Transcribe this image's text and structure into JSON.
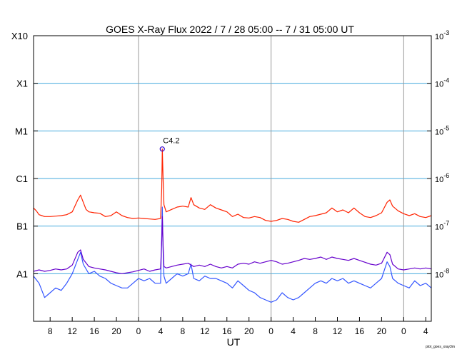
{
  "chart_data": {
    "type": "line",
    "title": "GOES X-Ray Flux   2022  /  7  /  28   05:00 --  7  /  31   05:00   UT",
    "xlabel": "UT",
    "ylabel_left_classes": [
      "X10",
      "X1",
      "M1",
      "C1",
      "B1",
      "A1"
    ],
    "ylabel_right_ticks": [
      {
        "base": "10",
        "exp": "-3"
      },
      {
        "base": "10",
        "exp": "-4"
      },
      {
        "base": "10",
        "exp": "-5"
      },
      {
        "base": "10",
        "exp": "-6"
      },
      {
        "base": "10",
        "exp": "-7"
      },
      {
        "base": "10",
        "exp": "-8"
      }
    ],
    "yscale": "log",
    "ylim_log10": [
      -9,
      -3
    ],
    "x_range_hours": [
      0,
      72
    ],
    "x_start": "2022-07-28 05:00 UT",
    "x_end": "2022-07-31 05:00 UT",
    "x_tick_labels": [
      "8",
      "12",
      "16",
      "20",
      "0",
      "4",
      "8",
      "12",
      "16",
      "20",
      "0",
      "4",
      "8",
      "12",
      "16",
      "20",
      "0",
      "4"
    ],
    "x_tick_hours": [
      3,
      7,
      11,
      15,
      19,
      23,
      27,
      31,
      35,
      39,
      43,
      47,
      51,
      55,
      59,
      63,
      67,
      71
    ],
    "day_boundaries_hours": [
      19,
      43,
      67
    ],
    "class_gridlines_log10": [
      -4,
      -5,
      -6,
      -7,
      -8
    ],
    "annotation": {
      "label": "C4.2",
      "x_hours": 23.3,
      "y_log10": -5.38
    },
    "footer": "plot_goes_xray3m",
    "colors": {
      "long_channel": "#ff2200",
      "long_channel_secondary": "#ff9900",
      "short_channel": "#3355ff",
      "short_channel_secondary": "#6600cc",
      "class_grid": "#44aadd",
      "day_grid": "#999999"
    },
    "series": [
      {
        "name": "",
        "color": "#ff2200",
        "points": [
          [
            0,
            -6.62
          ],
          [
            0.5,
            -6.68
          ],
          [
            1,
            -6.76
          ],
          [
            1.5,
            -6.78
          ],
          [
            2,
            -6.8
          ],
          [
            3,
            -6.8
          ],
          [
            4,
            -6.79
          ],
          [
            5,
            -6.78
          ],
          [
            6,
            -6.76
          ],
          [
            7,
            -6.7
          ],
          [
            8,
            -6.45
          ],
          [
            8.5,
            -6.35
          ],
          [
            9,
            -6.5
          ],
          [
            9.5,
            -6.65
          ],
          [
            10,
            -6.7
          ],
          [
            11,
            -6.72
          ],
          [
            12,
            -6.73
          ],
          [
            13,
            -6.8
          ],
          [
            14,
            -6.78
          ],
          [
            15,
            -6.7
          ],
          [
            16,
            -6.78
          ],
          [
            17,
            -6.82
          ],
          [
            18,
            -6.84
          ],
          [
            19,
            -6.83
          ],
          [
            20,
            -6.84
          ],
          [
            21,
            -6.85
          ],
          [
            22,
            -6.86
          ],
          [
            23,
            -6.84
          ],
          [
            23.2,
            -6.2
          ],
          [
            23.3,
            -5.38
          ],
          [
            23.45,
            -6.0
          ],
          [
            23.6,
            -6.55
          ],
          [
            24,
            -6.7
          ],
          [
            25,
            -6.65
          ],
          [
            26,
            -6.6
          ],
          [
            27,
            -6.58
          ],
          [
            28,
            -6.6
          ],
          [
            28.5,
            -6.4
          ],
          [
            29,
            -6.55
          ],
          [
            30,
            -6.62
          ],
          [
            31,
            -6.65
          ],
          [
            32,
            -6.55
          ],
          [
            33,
            -6.62
          ],
          [
            34,
            -6.66
          ],
          [
            35,
            -6.7
          ],
          [
            36,
            -6.8
          ],
          [
            37,
            -6.75
          ],
          [
            38,
            -6.82
          ],
          [
            39,
            -6.83
          ],
          [
            40,
            -6.8
          ],
          [
            41,
            -6.82
          ],
          [
            42,
            -6.88
          ],
          [
            43,
            -6.9
          ],
          [
            44,
            -6.88
          ],
          [
            45,
            -6.84
          ],
          [
            46,
            -6.86
          ],
          [
            47,
            -6.9
          ],
          [
            48,
            -6.92
          ],
          [
            49,
            -6.86
          ],
          [
            50,
            -6.8
          ],
          [
            51,
            -6.78
          ],
          [
            52,
            -6.75
          ],
          [
            53,
            -6.72
          ],
          [
            54,
            -6.62
          ],
          [
            55,
            -6.7
          ],
          [
            56,
            -6.66
          ],
          [
            57,
            -6.72
          ],
          [
            58,
            -6.62
          ],
          [
            59,
            -6.72
          ],
          [
            60,
            -6.8
          ],
          [
            61,
            -6.82
          ],
          [
            62,
            -6.78
          ],
          [
            63,
            -6.72
          ],
          [
            64,
            -6.5
          ],
          [
            64.5,
            -6.45
          ],
          [
            65,
            -6.58
          ],
          [
            66,
            -6.68
          ],
          [
            67,
            -6.74
          ],
          [
            68,
            -6.78
          ],
          [
            69,
            -6.74
          ],
          [
            70,
            -6.8
          ],
          [
            71,
            -6.82
          ],
          [
            72,
            -6.78
          ]
        ]
      },
      {
        "name": "",
        "color": "#3355ff",
        "points": [
          [
            0,
            -8.05
          ],
          [
            1,
            -8.2
          ],
          [
            2,
            -8.5
          ],
          [
            3,
            -8.4
          ],
          [
            4,
            -8.3
          ],
          [
            5,
            -8.35
          ],
          [
            6,
            -8.2
          ],
          [
            7,
            -8.0
          ],
          [
            8,
            -7.7
          ],
          [
            8.5,
            -7.55
          ],
          [
            9,
            -7.8
          ],
          [
            10,
            -8.0
          ],
          [
            11,
            -7.95
          ],
          [
            12,
            -8.05
          ],
          [
            13,
            -8.1
          ],
          [
            14,
            -8.2
          ],
          [
            15,
            -8.25
          ],
          [
            16,
            -8.3
          ],
          [
            17,
            -8.3
          ],
          [
            18,
            -8.2
          ],
          [
            19,
            -8.1
          ],
          [
            20,
            -8.15
          ],
          [
            21,
            -8.1
          ],
          [
            22,
            -8.2
          ],
          [
            23,
            -8.2
          ],
          [
            23.2,
            -7.2
          ],
          [
            23.3,
            -6.6
          ],
          [
            23.45,
            -7.5
          ],
          [
            23.6,
            -8.05
          ],
          [
            24,
            -8.2
          ],
          [
            25,
            -8.1
          ],
          [
            26,
            -8.0
          ],
          [
            27,
            -8.05
          ],
          [
            28,
            -8.0
          ],
          [
            28.5,
            -7.8
          ],
          [
            29,
            -8.1
          ],
          [
            30,
            -8.15
          ],
          [
            31,
            -8.05
          ],
          [
            32,
            -8.1
          ],
          [
            33,
            -8.1
          ],
          [
            34,
            -8.15
          ],
          [
            35,
            -8.2
          ],
          [
            36,
            -8.3
          ],
          [
            37,
            -8.15
          ],
          [
            38,
            -8.25
          ],
          [
            39,
            -8.35
          ],
          [
            40,
            -8.4
          ],
          [
            41,
            -8.5
          ],
          [
            42,
            -8.55
          ],
          [
            43,
            -8.6
          ],
          [
            44,
            -8.55
          ],
          [
            45,
            -8.4
          ],
          [
            46,
            -8.5
          ],
          [
            47,
            -8.55
          ],
          [
            48,
            -8.5
          ],
          [
            49,
            -8.4
          ],
          [
            50,
            -8.3
          ],
          [
            51,
            -8.2
          ],
          [
            52,
            -8.15
          ],
          [
            53,
            -8.2
          ],
          [
            54,
            -8.1
          ],
          [
            55,
            -8.15
          ],
          [
            56,
            -8.1
          ],
          [
            57,
            -8.2
          ],
          [
            58,
            -8.15
          ],
          [
            59,
            -8.2
          ],
          [
            60,
            -8.25
          ],
          [
            61,
            -8.3
          ],
          [
            62,
            -8.2
          ],
          [
            63,
            -8.1
          ],
          [
            64,
            -7.75
          ],
          [
            64.5,
            -7.85
          ],
          [
            65,
            -8.1
          ],
          [
            66,
            -8.2
          ],
          [
            67,
            -8.25
          ],
          [
            68,
            -8.3
          ],
          [
            69,
            -8.15
          ],
          [
            70,
            -8.25
          ],
          [
            71,
            -8.2
          ],
          [
            72,
            -8.3
          ]
        ]
      },
      {
        "name": "",
        "color": "#6600cc",
        "points": [
          [
            0,
            -7.95
          ],
          [
            1,
            -7.92
          ],
          [
            2,
            -7.95
          ],
          [
            3,
            -7.93
          ],
          [
            4,
            -7.9
          ],
          [
            5,
            -7.92
          ],
          [
            6,
            -7.9
          ],
          [
            7,
            -7.82
          ],
          [
            8,
            -7.55
          ],
          [
            8.5,
            -7.5
          ],
          [
            9,
            -7.7
          ],
          [
            10,
            -7.85
          ],
          [
            11,
            -7.88
          ],
          [
            12,
            -7.9
          ],
          [
            13,
            -7.92
          ],
          [
            14,
            -7.95
          ],
          [
            15,
            -7.98
          ],
          [
            16,
            -8.0
          ],
          [
            17,
            -7.98
          ],
          [
            18,
            -7.96
          ],
          [
            19,
            -7.93
          ],
          [
            20,
            -7.9
          ],
          [
            21,
            -7.95
          ],
          [
            22,
            -7.92
          ],
          [
            23,
            -7.9
          ],
          [
            23.2,
            -7.3
          ],
          [
            23.3,
            -6.8
          ],
          [
            23.45,
            -7.4
          ],
          [
            23.6,
            -7.85
          ],
          [
            24,
            -7.88
          ],
          [
            25,
            -7.85
          ],
          [
            26,
            -7.82
          ],
          [
            27,
            -7.8
          ],
          [
            28,
            -7.78
          ],
          [
            29,
            -7.85
          ],
          [
            30,
            -7.82
          ],
          [
            31,
            -7.85
          ],
          [
            32,
            -7.8
          ],
          [
            33,
            -7.85
          ],
          [
            34,
            -7.88
          ],
          [
            35,
            -7.85
          ],
          [
            36,
            -7.88
          ],
          [
            37,
            -7.8
          ],
          [
            38,
            -7.78
          ],
          [
            39,
            -7.8
          ],
          [
            40,
            -7.75
          ],
          [
            41,
            -7.78
          ],
          [
            42,
            -7.75
          ],
          [
            43,
            -7.72
          ],
          [
            44,
            -7.75
          ],
          [
            45,
            -7.8
          ],
          [
            46,
            -7.78
          ],
          [
            47,
            -7.75
          ],
          [
            48,
            -7.72
          ],
          [
            49,
            -7.68
          ],
          [
            50,
            -7.7
          ],
          [
            51,
            -7.68
          ],
          [
            52,
            -7.65
          ],
          [
            53,
            -7.7
          ],
          [
            54,
            -7.65
          ],
          [
            55,
            -7.68
          ],
          [
            56,
            -7.7
          ],
          [
            57,
            -7.72
          ],
          [
            58,
            -7.68
          ],
          [
            59,
            -7.72
          ],
          [
            61,
            -7.8
          ],
          [
            62,
            -7.82
          ],
          [
            63,
            -7.78
          ],
          [
            64,
            -7.55
          ],
          [
            64.5,
            -7.6
          ],
          [
            65,
            -7.8
          ],
          [
            66,
            -7.9
          ],
          [
            67,
            -7.92
          ],
          [
            68,
            -7.9
          ],
          [
            69,
            -7.88
          ],
          [
            70,
            -7.9
          ],
          [
            71,
            -7.88
          ],
          [
            72,
            -7.9
          ]
        ]
      }
    ]
  }
}
